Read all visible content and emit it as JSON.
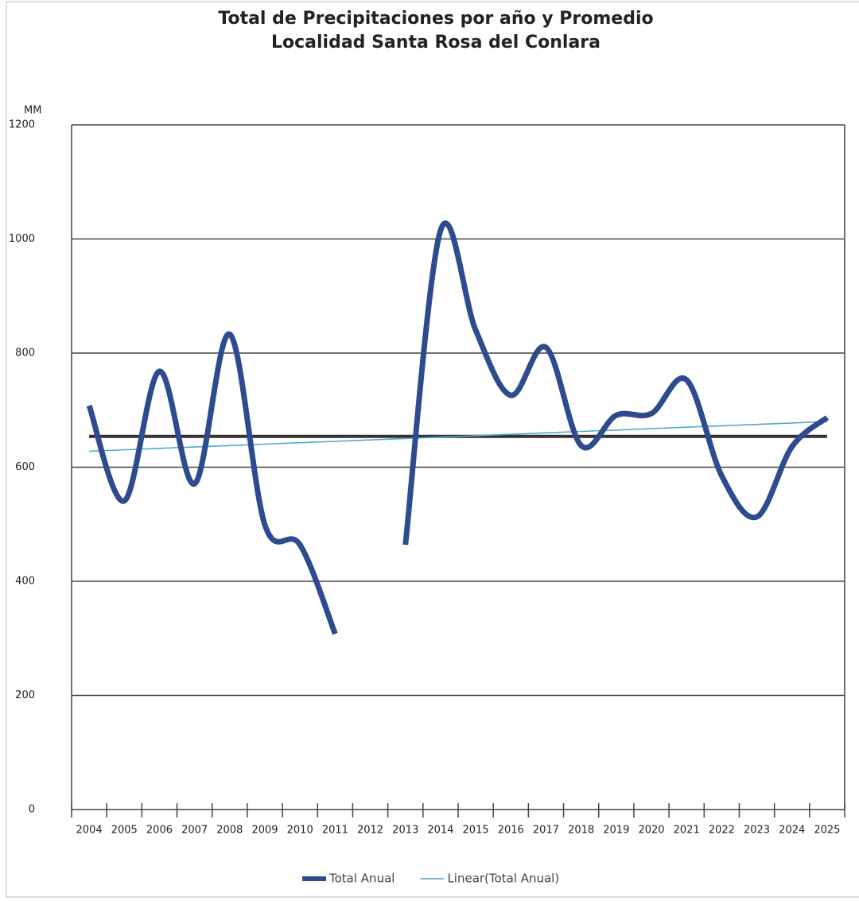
{
  "chart_data": {
    "type": "line",
    "title": "Total de Precipitaciones por año y Promedio",
    "subtitle": "Localidad Santa Rosa del Conlara",
    "y_label": "MM",
    "categories": [
      "2004",
      "2005",
      "2006",
      "2007",
      "2008",
      "2009",
      "2010",
      "2011",
      "2012",
      "2013",
      "2014",
      "2015",
      "2016",
      "2017",
      "2018",
      "2019",
      "2020",
      "2021",
      "2022",
      "2023",
      "2024",
      "2025"
    ],
    "series": [
      {
        "name": "Total Anual",
        "color": "#2f4b8f",
        "smooth": true,
        "values": [
          708,
          541,
          768,
          571,
          833,
          499,
          464,
          308,
          null,
          464,
          1015,
          840,
          726,
          810,
          638,
          691,
          694,
          753,
          585,
          513,
          636,
          687
        ]
      },
      {
        "name": "Linear(Total Anual)",
        "color": "#4fa9c9",
        "smooth": false,
        "values": [
          628,
          630.5,
          633,
          635.4,
          637.9,
          640.4,
          642.9,
          645.3,
          647.8,
          650.3,
          652.8,
          655.2,
          657.7,
          660.2,
          662.7,
          665.1,
          667.6,
          670.1,
          672.6,
          675,
          677.5,
          680
        ]
      }
    ],
    "reference_line": {
      "value": 654,
      "color": "#333333"
    },
    "ylim": [
      0,
      1200
    ],
    "yticks": [
      0,
      200,
      400,
      600,
      800,
      1000,
      1200
    ],
    "grid": true,
    "legend": "bottom"
  }
}
